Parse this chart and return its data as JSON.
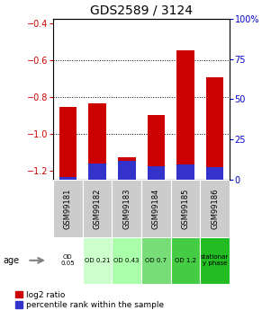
{
  "title": "GDS2589 / 3124",
  "samples": [
    "GSM99181",
    "GSM99182",
    "GSM99183",
    "GSM99184",
    "GSM99185",
    "GSM99186"
  ],
  "log2_ratios": [
    -0.855,
    -0.835,
    -1.13,
    -0.9,
    -0.545,
    -0.695
  ],
  "percentile_ranks": [
    1.5,
    10.0,
    12.0,
    8.5,
    9.5,
    8.0
  ],
  "bar_color_red": "#cc0000",
  "bar_color_blue": "#3333cc",
  "ylim_left": [
    -1.25,
    -0.375
  ],
  "ylim_right": [
    0,
    100
  ],
  "yticks_left": [
    -1.2,
    -1.0,
    -0.8,
    -0.6,
    -0.4
  ],
  "yticks_right": [
    0,
    25,
    50,
    75,
    100
  ],
  "bar_width": 0.6,
  "left_tick_color": "#cc0000",
  "right_tick_color": "#0000cc",
  "title_fontsize": 10,
  "tick_fontsize": 7,
  "legend_fontsize": 6.5,
  "age_labels": [
    "OD\n0.05",
    "OD 0.21",
    "OD 0.43",
    "OD 0.7",
    "OD 1.2",
    "stationar\ny phase"
  ],
  "age_bg_colors": [
    "#ffffff",
    "#ccffcc",
    "#aaffaa",
    "#77dd77",
    "#44cc44",
    "#22bb22"
  ],
  "sample_box_color": "#cccccc"
}
